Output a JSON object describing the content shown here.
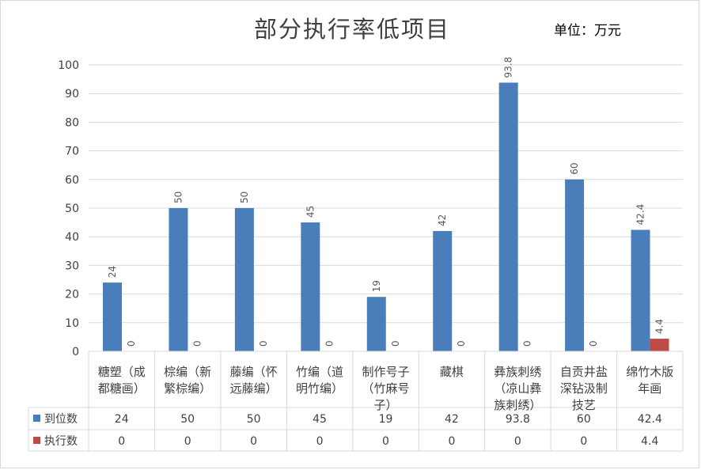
{
  "title": "部分执行率低项目",
  "unit": "单位：万元",
  "chart_data": {
    "type": "bar",
    "title": "部分执行率低项目",
    "unit_label": "单位：万元",
    "categories": [
      [
        "糖塑（成",
        "都糖画）"
      ],
      [
        "棕编（新",
        "繁棕编）"
      ],
      [
        "藤编（怀",
        "远藤编）"
      ],
      [
        "竹编（道",
        "明竹编）"
      ],
      [
        "制作号子",
        "（竹麻号",
        "子）"
      ],
      [
        "藏棋"
      ],
      [
        "彝族刺绣",
        "（凉山彝",
        "族刺绣）"
      ],
      [
        "自贡井盐",
        "深钻汲制",
        "技艺"
      ],
      [
        "绵竹木版",
        "年画"
      ]
    ],
    "series": [
      {
        "name": "到位数",
        "color": "#4a7ebb",
        "values": [
          24,
          50,
          50,
          45,
          19,
          42,
          93.8,
          60,
          42.4
        ],
        "labels": [
          "24",
          "50",
          "50",
          "45",
          "19",
          "42",
          "93.8",
          "60",
          "42.4"
        ]
      },
      {
        "name": "执行数",
        "color": "#be4b48",
        "values": [
          0,
          0,
          0,
          0,
          0,
          0,
          0,
          0,
          4.4
        ],
        "labels": [
          "0",
          "0",
          "0",
          "0",
          "0",
          "0",
          "0",
          "0",
          "4.4"
        ]
      }
    ],
    "ylim": [
      0,
      100
    ],
    "yticks": [
      "0",
      "10",
      "20",
      "30",
      "40",
      "50",
      "60",
      "70",
      "80",
      "90",
      "100"
    ],
    "grid": true,
    "legend": "data-table"
  }
}
